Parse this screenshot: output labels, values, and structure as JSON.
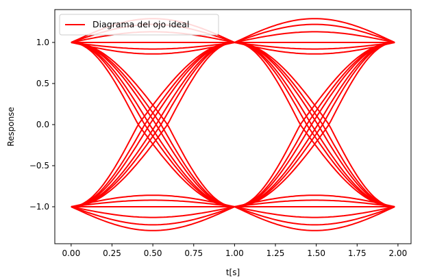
{
  "chart_data": {
    "type": "line",
    "title": "",
    "xlabel": "t[s]",
    "ylabel": "Response",
    "xlim": [
      -0.1,
      2.08
    ],
    "ylim": [
      -1.45,
      1.4
    ],
    "xticks": [
      0.0,
      0.25,
      0.5,
      0.75,
      1.0,
      1.25,
      1.5,
      1.75,
      2.0
    ],
    "xtick_labels": [
      "0.00",
      "0.25",
      "0.50",
      "0.75",
      "1.00",
      "1.25",
      "1.50",
      "1.75",
      "2.00"
    ],
    "yticks": [
      1.0,
      0.5,
      0.0,
      -0.5,
      -1.0
    ],
    "ytick_labels": [
      "1.0",
      "0.5",
      "0.0",
      "−0.5",
      "−1.0"
    ],
    "grid": false,
    "legend_position": "upper-left",
    "series": [
      {
        "name": "Diagrama del ojo ideal",
        "color": "#ff0000",
        "x_range": [
          0,
          1.98
        ],
        "segment_period": 1.0,
        "bit_values": [
          1,
          -1
        ],
        "crossing_offsets": [
          -0.09,
          -0.05,
          -0.02,
          0.02,
          0.05,
          0.09
        ],
        "same_bit_level_offsets": [
          0.0,
          0.13,
          0.22,
          0.29
        ]
      }
    ]
  }
}
